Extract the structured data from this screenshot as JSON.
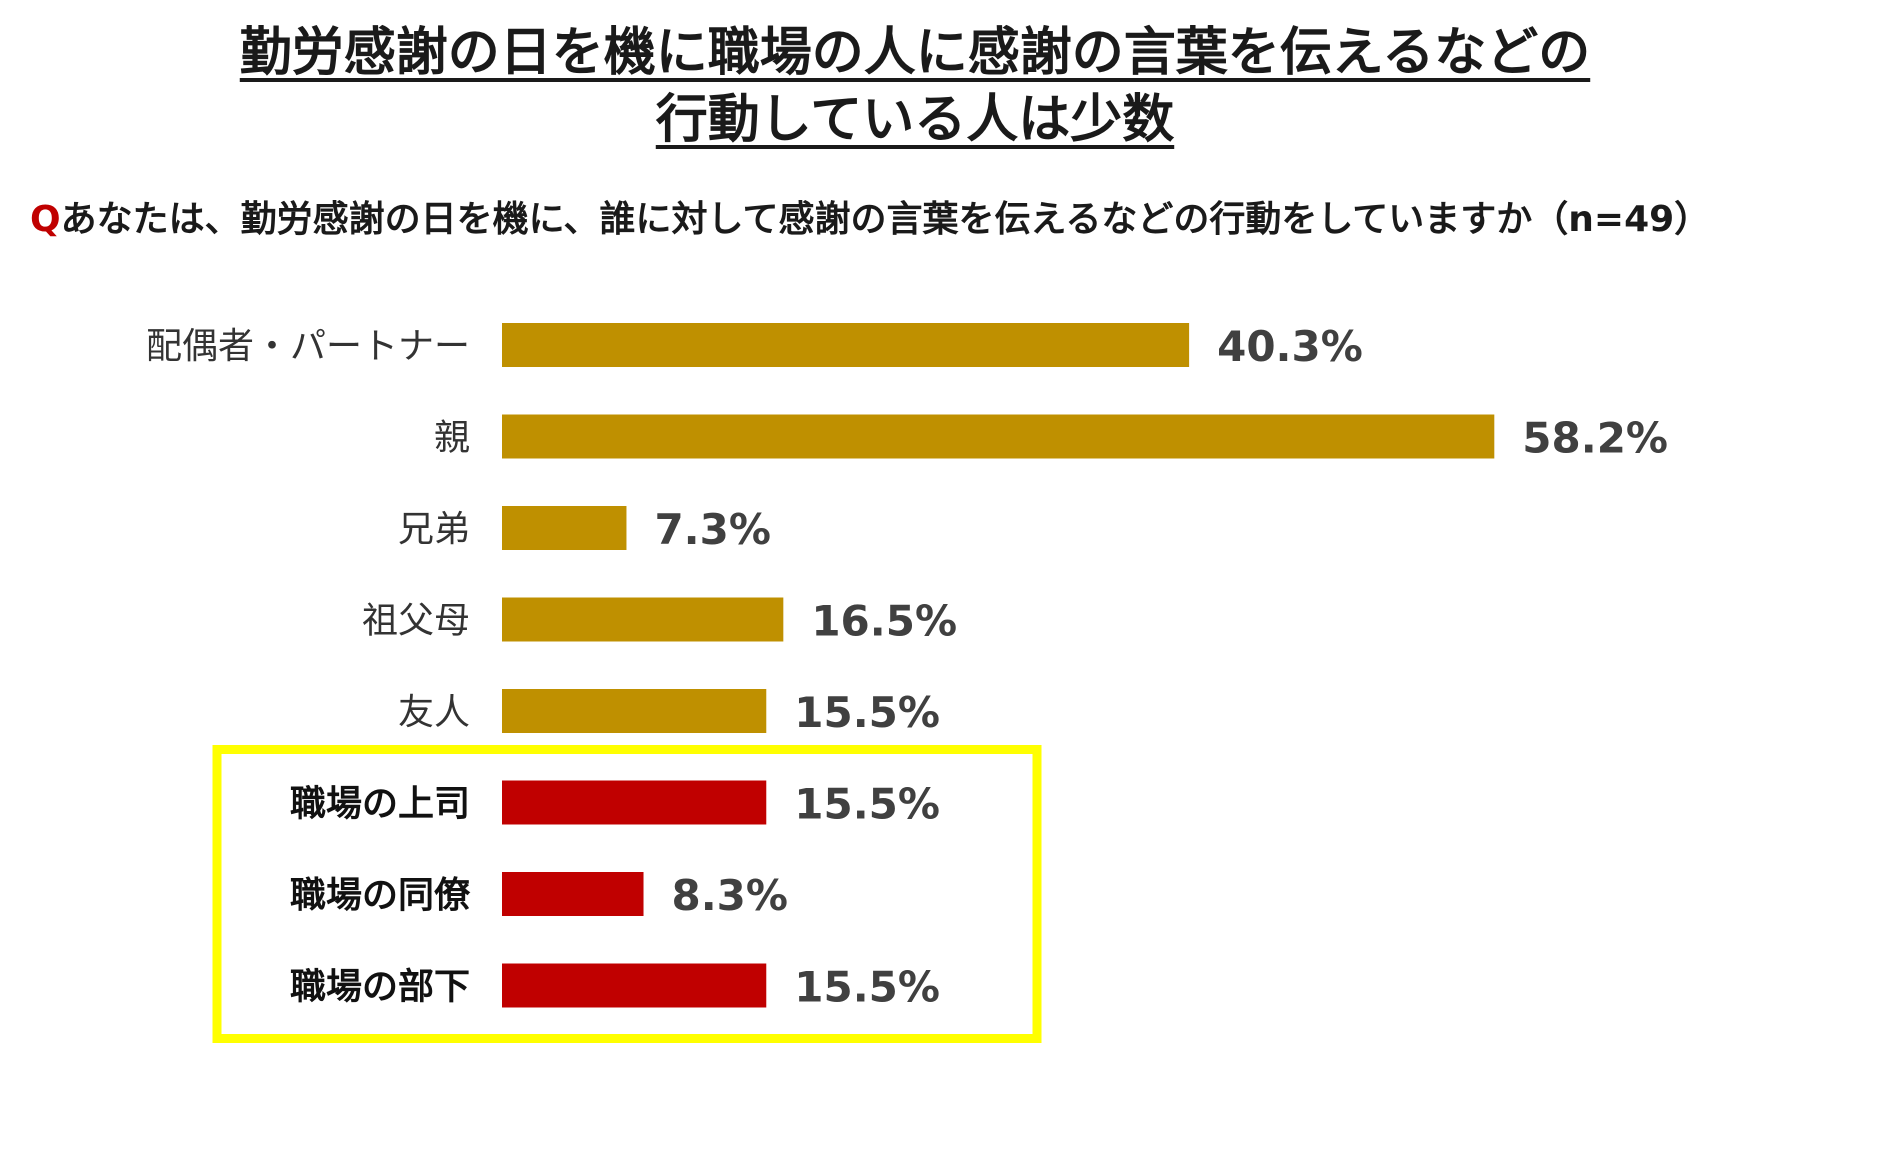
{
  "title": {
    "line1": "勤労感謝の日を機に職場の人に感謝の言葉を伝えるなどの",
    "line2": "行動している人は少数"
  },
  "question": {
    "prefix": "Q",
    "text": "あなたは、勤労感謝の日を機に、誰に対して感謝の言葉を伝えるなどの行動をしていますか（n=49）"
  },
  "colors": {
    "default_bar": "#bf9000",
    "highlight_bar": "#c00000",
    "highlight_box": "#ffff00"
  },
  "chart_data": {
    "type": "bar",
    "orientation": "horizontal",
    "categories": [
      "配偶者・パートナー",
      "親",
      "兄弟",
      "祖父母",
      "友人",
      "職場の上司",
      "職場の同僚",
      "職場の部下"
    ],
    "values": [
      40.3,
      58.2,
      7.3,
      16.5,
      15.5,
      15.5,
      8.3,
      15.5
    ],
    "value_labels": [
      "40.3%",
      "58.2%",
      "7.3%",
      "16.5%",
      "15.5%",
      "15.5%",
      "8.3%",
      "15.5%"
    ],
    "highlighted": [
      false,
      false,
      false,
      false,
      false,
      true,
      true,
      true
    ],
    "unit": "%",
    "grid": false,
    "legend": "none"
  }
}
